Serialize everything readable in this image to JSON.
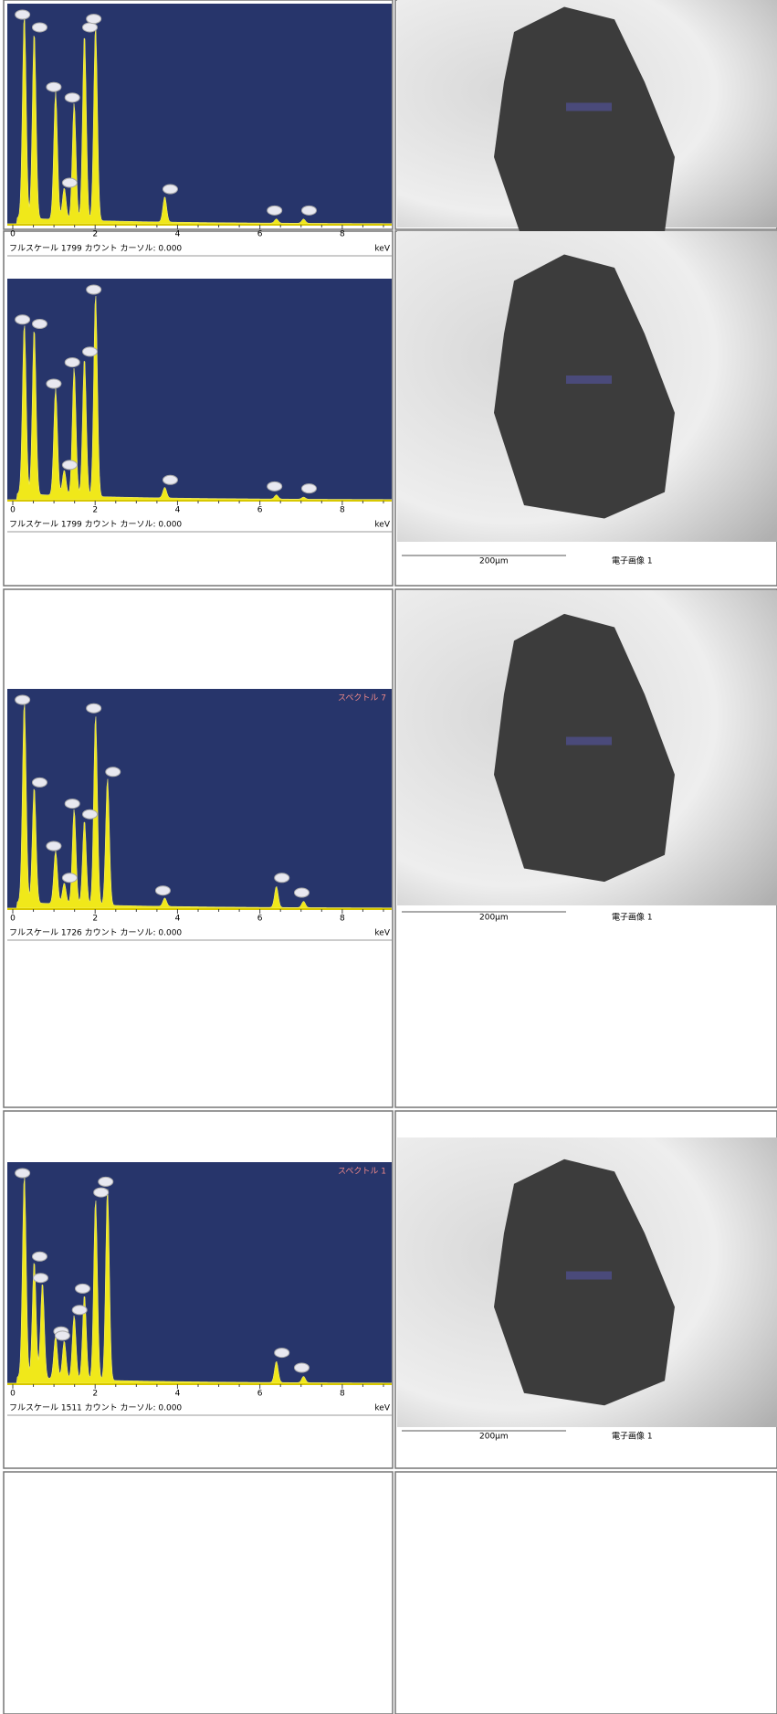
{
  "spectra": [
    {
      "fullscale": "フルスケール 1799 カウント カーソル: 0.000",
      "ticks": [
        "0",
        "2",
        "4",
        "6",
        "8"
      ],
      "unit": "keV"
    },
    {
      "fullscale": "フルスケール 1799 カウント カーソル: 0.000",
      "ticks": [
        "0",
        "2",
        "4",
        "6",
        "8"
      ],
      "unit": "keV"
    },
    {
      "name": "スペクトル 7",
      "fullscale": "フルスケール 1726 カウント カーソル: 0.000",
      "ticks": [
        "0",
        "2",
        "4",
        "6",
        "8"
      ],
      "unit": "keV"
    },
    {
      "name": "スペクトル 1",
      "fullscale": "フルスケール 1511 カウント カーソル: 0.000",
      "ticks": [
        "0",
        "2",
        "4",
        "6",
        "8"
      ],
      "unit": "keV"
    }
  ],
  "images": [
    {},
    {
      "scale": "200μm",
      "caption": "電子画像 1"
    },
    {
      "scale": "200μm",
      "caption": "電子画像 1"
    },
    {
      "scale": "200μm",
      "caption": "電子画像 1"
    }
  ]
}
